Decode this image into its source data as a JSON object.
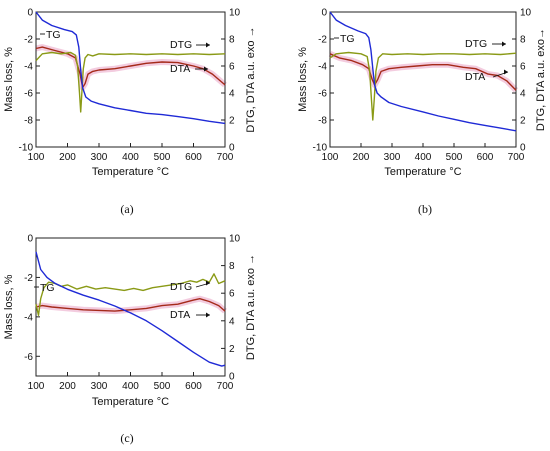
{
  "chart_data": [
    {
      "type": "line",
      "panel": "a",
      "caption": "(a)",
      "xlabel": "Temperature °C",
      "ylabel_left": "Mass loss, %",
      "ylabel_right": "DTG, DTA  a.u.  exo →",
      "xlim": [
        100,
        700
      ],
      "ylim_left": [
        -10,
        0
      ],
      "ylim_right": [
        0,
        10
      ],
      "xticks": [
        "100",
        "200",
        "300",
        "400",
        "500",
        "600",
        "700"
      ],
      "yticks_left": [
        "-10",
        "-8",
        "-6",
        "-4",
        "-2",
        "0"
      ],
      "yticks_right": [
        "0",
        "2",
        "4",
        "6",
        "8",
        "10"
      ],
      "labels": {
        "TG": "TG",
        "DTG": "DTG",
        "DTA": "DTA"
      },
      "colors": {
        "TG": "#1f2ad6",
        "DTG": "#8a9a16",
        "DTA": "#a52a1a",
        "DTA_band": "#f2c6dc"
      },
      "series": [
        {
          "name": "TG",
          "axis": "left",
          "points": [
            [
              100,
              0
            ],
            [
              120,
              -0.6
            ],
            [
              150,
              -1.0
            ],
            [
              190,
              -1.3
            ],
            [
              215,
              -1.45
            ],
            [
              228,
              -1.7
            ],
            [
              236,
              -2.6
            ],
            [
              242,
              -4.3
            ],
            [
              248,
              -5.6
            ],
            [
              258,
              -6.3
            ],
            [
              275,
              -6.6
            ],
            [
              300,
              -6.8
            ],
            [
              350,
              -7.1
            ],
            [
              400,
              -7.3
            ],
            [
              450,
              -7.5
            ],
            [
              500,
              -7.6
            ],
            [
              550,
              -7.75
            ],
            [
              600,
              -7.9
            ],
            [
              650,
              -8.1
            ],
            [
              700,
              -8.25
            ]
          ]
        },
        {
          "name": "DTG",
          "axis": "right",
          "points": [
            [
              100,
              6.4
            ],
            [
              120,
              6.9
            ],
            [
              150,
              7.0
            ],
            [
              180,
              6.9
            ],
            [
              210,
              7.0
            ],
            [
              225,
              6.8
            ],
            [
              232,
              6.0
            ],
            [
              238,
              4.0
            ],
            [
              242,
              2.6
            ],
            [
              246,
              4.2
            ],
            [
              250,
              5.8
            ],
            [
              256,
              6.6
            ],
            [
              265,
              6.85
            ],
            [
              280,
              6.75
            ],
            [
              300,
              6.9
            ],
            [
              350,
              6.85
            ],
            [
              400,
              6.9
            ],
            [
              450,
              6.85
            ],
            [
              500,
              6.9
            ],
            [
              550,
              6.85
            ],
            [
              600,
              6.9
            ],
            [
              650,
              6.85
            ],
            [
              700,
              6.9
            ]
          ]
        },
        {
          "name": "DTA",
          "axis": "right",
          "points": [
            [
              100,
              7.3
            ],
            [
              120,
              7.4
            ],
            [
              160,
              7.15
            ],
            [
              200,
              6.9
            ],
            [
              225,
              6.6
            ],
            [
              240,
              5.4
            ],
            [
              248,
              4.4
            ],
            [
              256,
              4.7
            ],
            [
              265,
              5.4
            ],
            [
              280,
              5.6
            ],
            [
              300,
              5.7
            ],
            [
              350,
              5.8
            ],
            [
              400,
              6.0
            ],
            [
              450,
              6.2
            ],
            [
              500,
              6.3
            ],
            [
              550,
              6.25
            ],
            [
              600,
              6.0
            ],
            [
              630,
              5.8
            ],
            [
              660,
              5.4
            ],
            [
              700,
              4.6
            ]
          ]
        }
      ]
    },
    {
      "type": "line",
      "panel": "b",
      "caption": "(b)",
      "xlabel": "Temperature °C",
      "ylabel_left": "Mass loss, %",
      "ylabel_right": "DTG, DTA  a.u.  exo→",
      "xlim": [
        100,
        700
      ],
      "ylim_left": [
        -10,
        0
      ],
      "ylim_right": [
        0,
        10
      ],
      "xticks": [
        "100",
        "200",
        "300",
        "400",
        "500",
        "600",
        "700"
      ],
      "yticks_left": [
        "-10",
        "-8",
        "-6",
        "-4",
        "-2",
        "0"
      ],
      "yticks_right": [
        "0",
        "2",
        "4",
        "6",
        "8",
        "10"
      ],
      "labels": {
        "TG": "TG",
        "DTG": "DTG",
        "DTA": "DTA"
      },
      "colors": {
        "TG": "#1f2ad6",
        "DTG": "#8a9a16",
        "DTA": "#a52a1a",
        "DTA_band": "#f2c6dc"
      },
      "series": [
        {
          "name": "TG",
          "axis": "left",
          "points": [
            [
              100,
              0
            ],
            [
              120,
              -0.6
            ],
            [
              150,
              -1.0
            ],
            [
              190,
              -1.4
            ],
            [
              215,
              -1.6
            ],
            [
              225,
              -1.9
            ],
            [
              232,
              -2.8
            ],
            [
              238,
              -4.2
            ],
            [
              244,
              -5.4
            ],
            [
              252,
              -6.0
            ],
            [
              265,
              -6.3
            ],
            [
              290,
              -6.7
            ],
            [
              330,
              -7.0
            ],
            [
              400,
              -7.4
            ],
            [
              450,
              -7.7
            ],
            [
              500,
              -7.95
            ],
            [
              550,
              -8.2
            ],
            [
              600,
              -8.4
            ],
            [
              650,
              -8.6
            ],
            [
              700,
              -8.8
            ]
          ]
        },
        {
          "name": "DTG",
          "axis": "right",
          "points": [
            [
              100,
              6.6
            ],
            [
              120,
              6.9
            ],
            [
              160,
              7.0
            ],
            [
              200,
              6.9
            ],
            [
              220,
              6.7
            ],
            [
              228,
              5.6
            ],
            [
              233,
              3.8
            ],
            [
              238,
              2.0
            ],
            [
              243,
              3.6
            ],
            [
              248,
              5.6
            ],
            [
              256,
              6.6
            ],
            [
              270,
              6.9
            ],
            [
              300,
              6.85
            ],
            [
              350,
              6.9
            ],
            [
              400,
              6.85
            ],
            [
              450,
              6.9
            ],
            [
              500,
              6.9
            ],
            [
              550,
              6.85
            ],
            [
              600,
              6.9
            ],
            [
              650,
              6.85
            ],
            [
              700,
              6.95
            ]
          ]
        },
        {
          "name": "DTA",
          "axis": "right",
          "points": [
            [
              100,
              6.9
            ],
            [
              130,
              6.6
            ],
            [
              170,
              6.4
            ],
            [
              205,
              6.1
            ],
            [
              225,
              5.8
            ],
            [
              236,
              5.0
            ],
            [
              244,
              4.6
            ],
            [
              254,
              5.0
            ],
            [
              265,
              5.6
            ],
            [
              290,
              5.8
            ],
            [
              330,
              5.9
            ],
            [
              380,
              6.0
            ],
            [
              430,
              6.1
            ],
            [
              480,
              6.1
            ],
            [
              530,
              5.9
            ],
            [
              570,
              5.8
            ],
            [
              610,
              5.4
            ],
            [
              640,
              5.3
            ],
            [
              670,
              4.9
            ],
            [
              700,
              4.2
            ]
          ]
        }
      ]
    },
    {
      "type": "line",
      "panel": "c",
      "caption": "(c)",
      "xlabel": "Temperature °C",
      "ylabel_left": "Mass loss, %",
      "ylabel_right": "DTG, DTA  a.u.  exo →",
      "xlim": [
        100,
        700
      ],
      "ylim_left": [
        -7,
        0
      ],
      "ylim_right": [
        0,
        10
      ],
      "xticks": [
        "100",
        "200",
        "300",
        "400",
        "500",
        "600",
        "700"
      ],
      "yticks_left": [
        "-6",
        "-4",
        "-2",
        "0"
      ],
      "yticks_right": [
        "0",
        "2",
        "4",
        "6",
        "8",
        "10"
      ],
      "labels": {
        "TG": "TG",
        "DTG": "DTG",
        "DTA": "DTA"
      },
      "colors": {
        "TG": "#1f2ad6",
        "DTG": "#8a9a16",
        "DTA": "#a52a1a",
        "DTA_band": "#f2c6dc"
      },
      "series": [
        {
          "name": "TG",
          "axis": "left",
          "points": [
            [
              100,
              -0.7
            ],
            [
              115,
              -1.6
            ],
            [
              135,
              -2.0
            ],
            [
              160,
              -2.3
            ],
            [
              200,
              -2.6
            ],
            [
              250,
              -2.9
            ],
            [
              300,
              -3.15
            ],
            [
              350,
              -3.45
            ],
            [
              400,
              -3.8
            ],
            [
              450,
              -4.2
            ],
            [
              500,
              -4.7
            ],
            [
              550,
              -5.25
            ],
            [
              600,
              -5.8
            ],
            [
              650,
              -6.3
            ],
            [
              690,
              -6.5
            ],
            [
              700,
              -6.45
            ]
          ]
        },
        {
          "name": "DTG",
          "axis": "right",
          "points": [
            [
              100,
              5.2
            ],
            [
              108,
              4.4
            ],
            [
              115,
              5.6
            ],
            [
              125,
              6.4
            ],
            [
              140,
              6.8
            ],
            [
              160,
              6.7
            ],
            [
              180,
              6.5
            ],
            [
              200,
              6.6
            ],
            [
              230,
              6.3
            ],
            [
              260,
              6.5
            ],
            [
              290,
              6.3
            ],
            [
              320,
              6.4
            ],
            [
              350,
              6.3
            ],
            [
              380,
              6.2
            ],
            [
              410,
              6.35
            ],
            [
              440,
              6.2
            ],
            [
              470,
              6.4
            ],
            [
              500,
              6.5
            ],
            [
              530,
              6.6
            ],
            [
              560,
              6.7
            ],
            [
              590,
              6.9
            ],
            [
              610,
              6.8
            ],
            [
              630,
              7.0
            ],
            [
              650,
              6.8
            ],
            [
              665,
              7.4
            ],
            [
              680,
              6.7
            ],
            [
              700,
              6.9
            ]
          ]
        },
        {
          "name": "DTA",
          "axis": "right",
          "points": [
            [
              100,
              5.0
            ],
            [
              120,
              5.1
            ],
            [
              150,
              5.0
            ],
            [
              200,
              4.9
            ],
            [
              250,
              4.8
            ],
            [
              300,
              4.75
            ],
            [
              350,
              4.7
            ],
            [
              400,
              4.8
            ],
            [
              450,
              4.9
            ],
            [
              500,
              5.1
            ],
            [
              550,
              5.2
            ],
            [
              600,
              5.5
            ],
            [
              620,
              5.6
            ],
            [
              650,
              5.4
            ],
            [
              680,
              5.1
            ],
            [
              700,
              4.7
            ]
          ]
        }
      ]
    }
  ]
}
